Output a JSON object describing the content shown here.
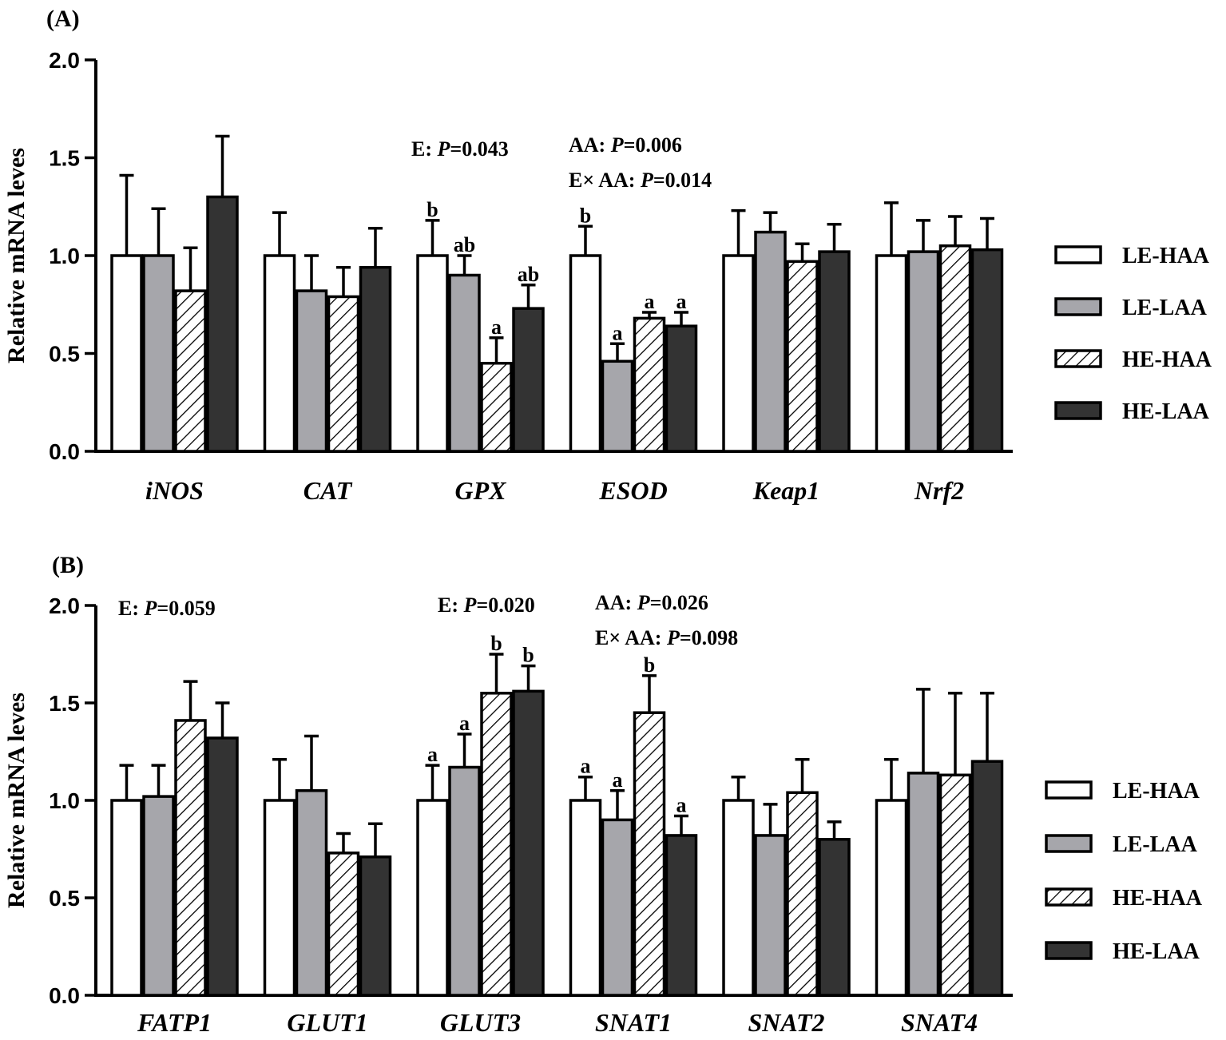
{
  "legend": {
    "items": [
      {
        "name": "LE-HAA",
        "fill": "#ffffff"
      },
      {
        "name": "LE-LAA",
        "fill": "#a6a6ab"
      },
      {
        "name": "HE-HAA",
        "fill": "hatch"
      },
      {
        "name": "HE-LAA",
        "fill": "#333333"
      }
    ]
  },
  "colors": {
    "le_haa": "#ffffff",
    "le_laa": "#a6a6ab",
    "he_haa_hatch": "#000000",
    "he_laa": "#333333",
    "axis": "#000000"
  },
  "chart_data": [
    {
      "type": "bar",
      "panel": "(A)",
      "ylabel": "Relative mRNA leves",
      "ylim": [
        0,
        2.0
      ],
      "yticks": [
        "0.0",
        "0.5",
        "1.0",
        "1.5",
        "2.0"
      ],
      "categories": [
        "iNOS",
        "CAT",
        "GPX",
        "ESOD",
        "Keap1",
        "Nrf2"
      ],
      "series": [
        {
          "name": "LE-HAA",
          "values": [
            1.0,
            1.0,
            1.0,
            1.0,
            1.0,
            1.0
          ],
          "errors": [
            0.41,
            0.22,
            0.18,
            0.15,
            0.23,
            0.27
          ]
        },
        {
          "name": "LE-LAA",
          "values": [
            1.0,
            0.82,
            0.9,
            0.46,
            1.12,
            1.02
          ],
          "errors": [
            0.24,
            0.18,
            0.1,
            0.09,
            0.1,
            0.16
          ]
        },
        {
          "name": "HE-HAA",
          "values": [
            0.82,
            0.79,
            0.45,
            0.68,
            0.97,
            1.05
          ],
          "errors": [
            0.22,
            0.15,
            0.13,
            0.03,
            0.09,
            0.15
          ]
        },
        {
          "name": "HE-LAA",
          "values": [
            1.3,
            0.94,
            0.73,
            0.64,
            1.02,
            1.03
          ],
          "errors": [
            0.31,
            0.2,
            0.12,
            0.07,
            0.14,
            0.16
          ]
        }
      ],
      "letters": [
        [
          "",
          "",
          "b",
          "b",
          "",
          ""
        ],
        [
          "",
          "",
          "ab",
          "a",
          "",
          ""
        ],
        [
          "",
          "",
          "a",
          "a",
          "",
          ""
        ],
        [
          "",
          "",
          "ab",
          "a",
          "",
          ""
        ]
      ],
      "annotations": [
        {
          "lines": [
            {
              "pre": "E: ",
              "it": "P",
              "post": "=0.043"
            }
          ]
        },
        {
          "lines": [
            {
              "pre": "AA: ",
              "it": "P",
              "post": "=0.006"
            },
            {
              "pre": "E× AA: ",
              "it": "P",
              "post": "=0.014"
            }
          ]
        }
      ]
    },
    {
      "type": "bar",
      "panel": "(B)",
      "ylabel": "Relative mRNA leves",
      "ylim": [
        0,
        2.0
      ],
      "yticks": [
        "0.0",
        "0.5",
        "1.0",
        "1.5",
        "2.0"
      ],
      "categories": [
        "FATP1",
        "GLUT1",
        "GLUT3",
        "SNAT1",
        "SNAT2",
        "SNAT4"
      ],
      "series": [
        {
          "name": "LE-HAA",
          "values": [
            1.0,
            1.0,
            1.0,
            1.0,
            1.0,
            1.0
          ],
          "errors": [
            0.18,
            0.21,
            0.18,
            0.12,
            0.12,
            0.21
          ]
        },
        {
          "name": "LE-LAA",
          "values": [
            1.02,
            1.05,
            1.17,
            0.9,
            0.82,
            1.14
          ],
          "errors": [
            0.16,
            0.28,
            0.17,
            0.15,
            0.16,
            0.43
          ]
        },
        {
          "name": "HE-HAA",
          "values": [
            1.41,
            0.73,
            1.55,
            1.45,
            1.04,
            1.13
          ],
          "errors": [
            0.2,
            0.1,
            0.2,
            0.19,
            0.17,
            0.42
          ]
        },
        {
          "name": "HE-LAA",
          "values": [
            1.32,
            0.71,
            1.56,
            0.82,
            0.8,
            1.2
          ],
          "errors": [
            0.18,
            0.17,
            0.13,
            0.1,
            0.09,
            0.35
          ]
        }
      ],
      "letters": [
        [
          "",
          "",
          "a",
          "a",
          "",
          ""
        ],
        [
          "",
          "",
          "a",
          "a",
          "",
          ""
        ],
        [
          "",
          "",
          "b",
          "b",
          "",
          ""
        ],
        [
          "",
          "",
          "b",
          "a",
          "",
          ""
        ]
      ],
      "annotations": [
        {
          "lines": [
            {
              "pre": "E: ",
              "it": "P",
              "post": "=0.059"
            }
          ]
        },
        {
          "lines": [
            {
              "pre": "E: ",
              "it": "P",
              "post": "=0.020"
            }
          ]
        },
        {
          "lines": [
            {
              "pre": "AA: ",
              "it": "P",
              "post": "=0.026"
            },
            {
              "pre": "E× AA: ",
              "it": "P",
              "post": "=0.098"
            }
          ]
        }
      ]
    }
  ]
}
